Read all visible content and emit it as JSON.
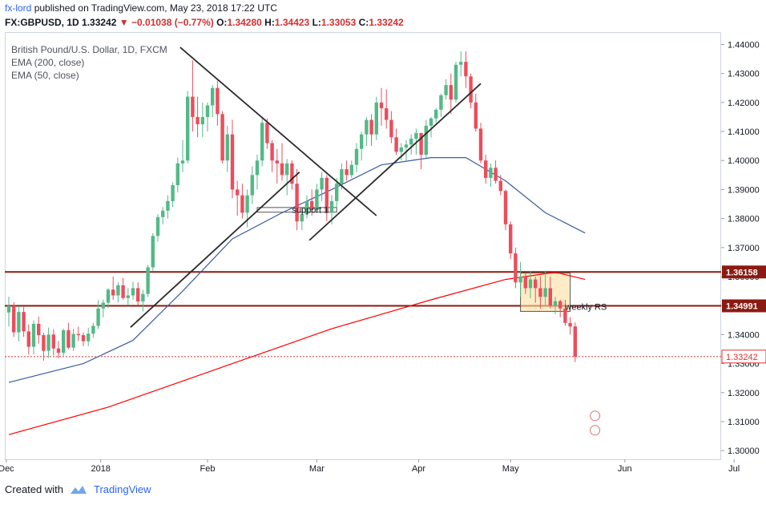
{
  "header": {
    "author": "fx-lord",
    "published_text": "published on TradingView.com, May 23, 2018 17:22 UTC",
    "symbol": "FX:GBPUSD, 1D",
    "close_value": "1.33242",
    "change_value": "−0.01038 (−0.77%)",
    "o_label": "O:",
    "o_value": "1.34280",
    "h_label": "H:",
    "h_value": "1.34423",
    "l_label": "L:",
    "l_value": "1.33053",
    "c_label": "C:",
    "c_value": "1.33242"
  },
  "legend": {
    "title": "British Pound/U.S. Dollar, 1D, FXCM",
    "ema200": "EMA (200, close)",
    "ema50": "EMA (50, close)"
  },
  "footer": {
    "created_with": "Created with",
    "brand": "TradingView"
  },
  "colors": {
    "up": "#53b987",
    "down": "#eb4d5c",
    "ema200": "#ff0000",
    "ema50": "#3a5ba0",
    "level": "#8b1a10",
    "trend": "#2b2b2b",
    "box": "#ffe0a0",
    "last_price": "#e03030"
  },
  "chart_data": {
    "type": "candlestick",
    "symbol": "GBPUSD",
    "ylim": [
      1.297,
      1.444
    ],
    "y_ticks": [
      "1.44000",
      "1.43000",
      "1.42000",
      "1.41000",
      "1.40000",
      "1.39000",
      "1.38000",
      "1.37000",
      "1.36000",
      "1.35000",
      "1.34000",
      "1.33000",
      "1.32000",
      "1.31000",
      "1.30000"
    ],
    "x_ticks": [
      "Dec",
      "2018",
      "Feb",
      "Mar",
      "Apr",
      "May",
      "Jun",
      "Jul"
    ],
    "levels": [
      {
        "label": "1.36158",
        "value": 1.36158
      },
      {
        "label": "1.34991",
        "value": 1.34991
      }
    ],
    "last_price": {
      "label": "1.33242",
      "value": 1.33242
    },
    "annotations": [
      "support 1",
      "weekly RS"
    ],
    "candles": [
      [
        1.3476,
        1.3531,
        1.3428,
        1.3499
      ],
      [
        1.3499,
        1.3512,
        1.3392,
        1.3408
      ],
      [
        1.3408,
        1.3498,
        1.3377,
        1.3478
      ],
      [
        1.3478,
        1.3495,
        1.3392,
        1.3411
      ],
      [
        1.3411,
        1.3435,
        1.3331,
        1.3358
      ],
      [
        1.3358,
        1.3449,
        1.3332,
        1.3437
      ],
      [
        1.3437,
        1.3462,
        1.3369,
        1.3398
      ],
      [
        1.3398,
        1.3406,
        1.331,
        1.3344
      ],
      [
        1.3344,
        1.3424,
        1.3319,
        1.34
      ],
      [
        1.34,
        1.3419,
        1.3328,
        1.3352
      ],
      [
        1.3352,
        1.3378,
        1.3318,
        1.3337
      ],
      [
        1.3337,
        1.342,
        1.3327,
        1.3415
      ],
      [
        1.3415,
        1.3441,
        1.3349,
        1.3355
      ],
      [
        1.3355,
        1.342,
        1.3344,
        1.3402
      ],
      [
        1.3402,
        1.3427,
        1.3378,
        1.3398
      ],
      [
        1.3398,
        1.3407,
        1.336,
        1.3377
      ],
      [
        1.3377,
        1.3423,
        1.336,
        1.3403
      ],
      [
        1.3403,
        1.344,
        1.339,
        1.343
      ],
      [
        1.343,
        1.3519,
        1.3419,
        1.349
      ],
      [
        1.349,
        1.352,
        1.346,
        1.351
      ],
      [
        1.351,
        1.356,
        1.349,
        1.3555
      ],
      [
        1.3555,
        1.36,
        1.352,
        1.3535
      ],
      [
        1.3535,
        1.358,
        1.351,
        1.357
      ],
      [
        1.357,
        1.3595,
        1.352,
        1.3526
      ],
      [
        1.3526,
        1.356,
        1.35,
        1.3535
      ],
      [
        1.3535,
        1.3582,
        1.352,
        1.356
      ],
      [
        1.356,
        1.358,
        1.35,
        1.3514
      ],
      [
        1.3514,
        1.3555,
        1.348,
        1.354
      ],
      [
        1.354,
        1.364,
        1.353,
        1.3632
      ],
      [
        1.3632,
        1.375,
        1.362,
        1.374
      ],
      [
        1.374,
        1.3815,
        1.372,
        1.3805
      ],
      [
        1.3805,
        1.384,
        1.378,
        1.3827
      ],
      [
        1.3827,
        1.388,
        1.38,
        1.386
      ],
      [
        1.386,
        1.3925,
        1.384,
        1.3915
      ],
      [
        1.3915,
        1.401,
        1.389,
        1.399
      ],
      [
        1.399,
        1.407,
        1.396,
        1.4
      ],
      [
        1.4,
        1.424,
        1.399,
        1.422
      ],
      [
        1.422,
        1.4345,
        1.41,
        1.415
      ],
      [
        1.415,
        1.422,
        1.408,
        1.4125
      ],
      [
        1.4125,
        1.42,
        1.408,
        1.415
      ],
      [
        1.415,
        1.42,
        1.41,
        1.419
      ],
      [
        1.419,
        1.426,
        1.415,
        1.425
      ],
      [
        1.425,
        1.4275,
        1.412,
        1.416
      ],
      [
        1.416,
        1.417,
        1.399,
        1.4
      ],
      [
        1.4,
        1.412,
        1.396,
        1.409
      ],
      [
        1.409,
        1.414,
        1.387,
        1.39
      ],
      [
        1.39,
        1.393,
        1.381,
        1.388
      ],
      [
        1.388,
        1.392,
        1.38,
        1.382
      ],
      [
        1.382,
        1.39,
        1.377,
        1.388
      ],
      [
        1.388,
        1.398,
        1.385,
        1.395
      ],
      [
        1.395,
        1.402,
        1.39,
        1.4
      ],
      [
        1.4,
        1.4145,
        1.398,
        1.413
      ],
      [
        1.413,
        1.4145,
        1.404,
        1.406
      ],
      [
        1.406,
        1.407,
        1.396,
        1.4
      ],
      [
        1.4,
        1.404,
        1.392,
        1.399
      ],
      [
        1.399,
        1.406,
        1.393,
        1.395
      ],
      [
        1.395,
        1.4005,
        1.388,
        1.399
      ],
      [
        1.399,
        1.4,
        1.39,
        1.392
      ],
      [
        1.392,
        1.397,
        1.376,
        1.379
      ],
      [
        1.379,
        1.384,
        1.376,
        1.3815
      ],
      [
        1.3815,
        1.388,
        1.38,
        1.386
      ],
      [
        1.386,
        1.39,
        1.381,
        1.383
      ],
      [
        1.383,
        1.392,
        1.382,
        1.39
      ],
      [
        1.39,
        1.396,
        1.386,
        1.394
      ],
      [
        1.394,
        1.395,
        1.379,
        1.382
      ],
      [
        1.382,
        1.388,
        1.378,
        1.386
      ],
      [
        1.386,
        1.394,
        1.384,
        1.392
      ],
      [
        1.392,
        1.399,
        1.39,
        1.397
      ],
      [
        1.397,
        1.4,
        1.393,
        1.395
      ],
      [
        1.395,
        1.4,
        1.394,
        1.3985
      ],
      [
        1.3985,
        1.406,
        1.396,
        1.404
      ],
      [
        1.404,
        1.41,
        1.4,
        1.409
      ],
      [
        1.409,
        1.415,
        1.405,
        1.414
      ],
      [
        1.414,
        1.416,
        1.405,
        1.409
      ],
      [
        1.409,
        1.422,
        1.407,
        1.42
      ],
      [
        1.42,
        1.425,
        1.412,
        1.418
      ],
      [
        1.418,
        1.4245,
        1.411,
        1.414
      ],
      [
        1.414,
        1.417,
        1.406,
        1.408
      ],
      [
        1.408,
        1.411,
        1.402,
        1.403
      ],
      [
        1.403,
        1.406,
        1.4,
        1.4045
      ],
      [
        1.4045,
        1.407,
        1.4,
        1.4055
      ],
      [
        1.4055,
        1.409,
        1.402,
        1.4075
      ],
      [
        1.4075,
        1.411,
        1.402,
        1.4095
      ],
      [
        1.4095,
        1.409,
        1.397,
        1.402
      ],
      [
        1.402,
        1.414,
        1.401,
        1.412
      ],
      [
        1.412,
        1.415,
        1.408,
        1.4145
      ],
      [
        1.4145,
        1.418,
        1.413,
        1.4175
      ],
      [
        1.4175,
        1.423,
        1.415,
        1.4225
      ],
      [
        1.4225,
        1.428,
        1.421,
        1.426
      ],
      [
        1.426,
        1.43,
        1.416,
        1.421
      ],
      [
        1.421,
        1.434,
        1.42,
        1.433
      ],
      [
        1.433,
        1.4376,
        1.429,
        1.434
      ],
      [
        1.434,
        1.4377,
        1.425,
        1.429
      ],
      [
        1.429,
        1.43,
        1.418,
        1.42
      ],
      [
        1.42,
        1.423,
        1.41,
        1.411
      ],
      [
        1.411,
        1.413,
        1.399,
        1.4
      ],
      [
        1.4,
        1.402,
        1.392,
        1.394
      ],
      [
        1.394,
        1.399,
        1.391,
        1.3975
      ],
      [
        1.3975,
        1.4,
        1.392,
        1.393
      ],
      [
        1.393,
        1.395,
        1.388,
        1.3895
      ],
      [
        1.3895,
        1.39,
        1.376,
        1.378
      ],
      [
        1.378,
        1.379,
        1.366,
        1.368
      ],
      [
        1.368,
        1.37,
        1.356,
        1.358
      ],
      [
        1.358,
        1.365,
        1.353,
        1.36
      ],
      [
        1.36,
        1.361,
        1.354,
        1.356
      ],
      [
        1.356,
        1.362,
        1.3525,
        1.359
      ],
      [
        1.359,
        1.36,
        1.351,
        1.356
      ],
      [
        1.356,
        1.36,
        1.349,
        1.353
      ],
      [
        1.353,
        1.362,
        1.35,
        1.356
      ],
      [
        1.356,
        1.36,
        1.349,
        1.35
      ],
      [
        1.35,
        1.353,
        1.347,
        1.3515
      ],
      [
        1.3515,
        1.352,
        1.346,
        1.349
      ],
      [
        1.349,
        1.352,
        1.343,
        1.344
      ],
      [
        1.344,
        1.346,
        1.34,
        1.3428
      ],
      [
        1.3428,
        1.3442,
        1.3305,
        1.3324
      ]
    ],
    "ema200": [
      [
        0,
        1.3055
      ],
      [
        20,
        1.315
      ],
      [
        45,
        1.33
      ],
      [
        65,
        1.342
      ],
      [
        85,
        1.352
      ],
      [
        100,
        1.359
      ],
      [
        110,
        1.3615
      ],
      [
        116,
        1.359
      ]
    ],
    "ema50": [
      [
        0,
        1.3235
      ],
      [
        15,
        1.33
      ],
      [
        25,
        1.338
      ],
      [
        35,
        1.355
      ],
      [
        45,
        1.373
      ],
      [
        55,
        1.382
      ],
      [
        65,
        1.39
      ],
      [
        75,
        1.3985
      ],
      [
        85,
        1.401
      ],
      [
        92,
        1.401
      ],
      [
        100,
        1.393
      ],
      [
        108,
        1.382
      ],
      [
        116,
        1.375
      ]
    ]
  }
}
